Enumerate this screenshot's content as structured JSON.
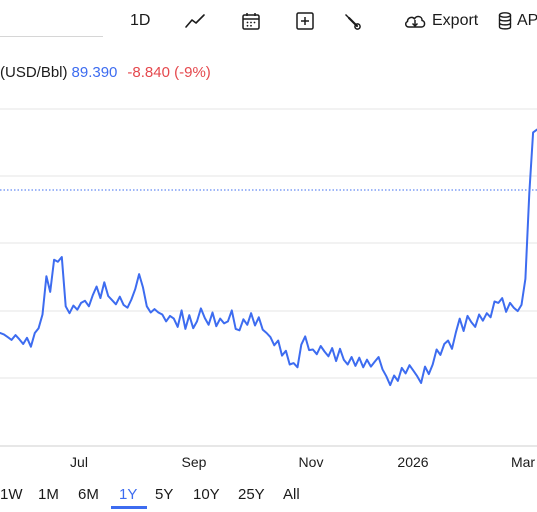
{
  "toolbar": {
    "interval_label": "1D",
    "export_label": "Export",
    "api_label": "AP"
  },
  "quote": {
    "unit": "(USD/Bbl)",
    "price": "89.390",
    "change": "-8.840 (-9%)"
  },
  "range_buttons": [
    "1W",
    "1M",
    "6M",
    "1Y",
    "5Y",
    "10Y",
    "25Y",
    "All"
  ],
  "active_range": "1Y",
  "colors": {
    "line": "#3d6cf0",
    "change_negative": "#e5484d",
    "grid": "#e6e6e6",
    "reference_line": "#3d6cf0"
  },
  "chart_data": {
    "type": "line",
    "title": "",
    "xlabel": "",
    "ylabel": "",
    "x_tick_labels": [
      "Jul",
      "Sep",
      "Nov",
      "2026",
      "Mar"
    ],
    "grid": true,
    "legend": "none",
    "ylim": [
      52,
      111
    ],
    "reference_value": 89.39,
    "series": [
      {
        "values": [
          68.5,
          68.3,
          67.9,
          67.5,
          68.2,
          67.6,
          66.9,
          67.8,
          66.5,
          68.5,
          69.2,
          71.2,
          76.8,
          74.5,
          79.2,
          78.9,
          79.6,
          72.4,
          71.4,
          72.5,
          71.9,
          72.9,
          73.2,
          72.4,
          74.0,
          75.3,
          73.6,
          75.9,
          73.9,
          73.3,
          72.7,
          73.8,
          72.6,
          72.2,
          73.4,
          74.9,
          77.1,
          75.2,
          72.4,
          71.5,
          72.0,
          71.5,
          71.2,
          70.2,
          71.0,
          70.6,
          69.4,
          71.8,
          69.1,
          71.1,
          69.2,
          70.2,
          72.1,
          70.7,
          69.7,
          71.5,
          69.5,
          70.6,
          69.9,
          70.2,
          71.8,
          69.1,
          68.9,
          70.5,
          69.7,
          71.4,
          69.6,
          70.8,
          69.0,
          68.5,
          67.9,
          66.7,
          67.4,
          65.2,
          65.9,
          63.9,
          64.1,
          63.5,
          66.8,
          68.0,
          66.0,
          66.1,
          65.4,
          66.6,
          65.8,
          65.1,
          66.3,
          64.4,
          66.2,
          64.6,
          63.9,
          65.0,
          63.7,
          64.9,
          63.5,
          64.6,
          63.6,
          64.3,
          65.0,
          63.2,
          62.2,
          60.9,
          62.3,
          61.5,
          63.4,
          62.6,
          63.8,
          63.0,
          62.2,
          61.2,
          63.6,
          62.5,
          63.9,
          66.1,
          65.3,
          66.9,
          67.4,
          66.2,
          68.6,
          70.6,
          68.8,
          71.0,
          70.1,
          69.4,
          71.2,
          70.3,
          71.4,
          70.8,
          73.1,
          72.9,
          73.6,
          71.6,
          72.9,
          72.2,
          71.7,
          72.6,
          76.4,
          88.9,
          97.8,
          98.2
        ]
      }
    ]
  }
}
